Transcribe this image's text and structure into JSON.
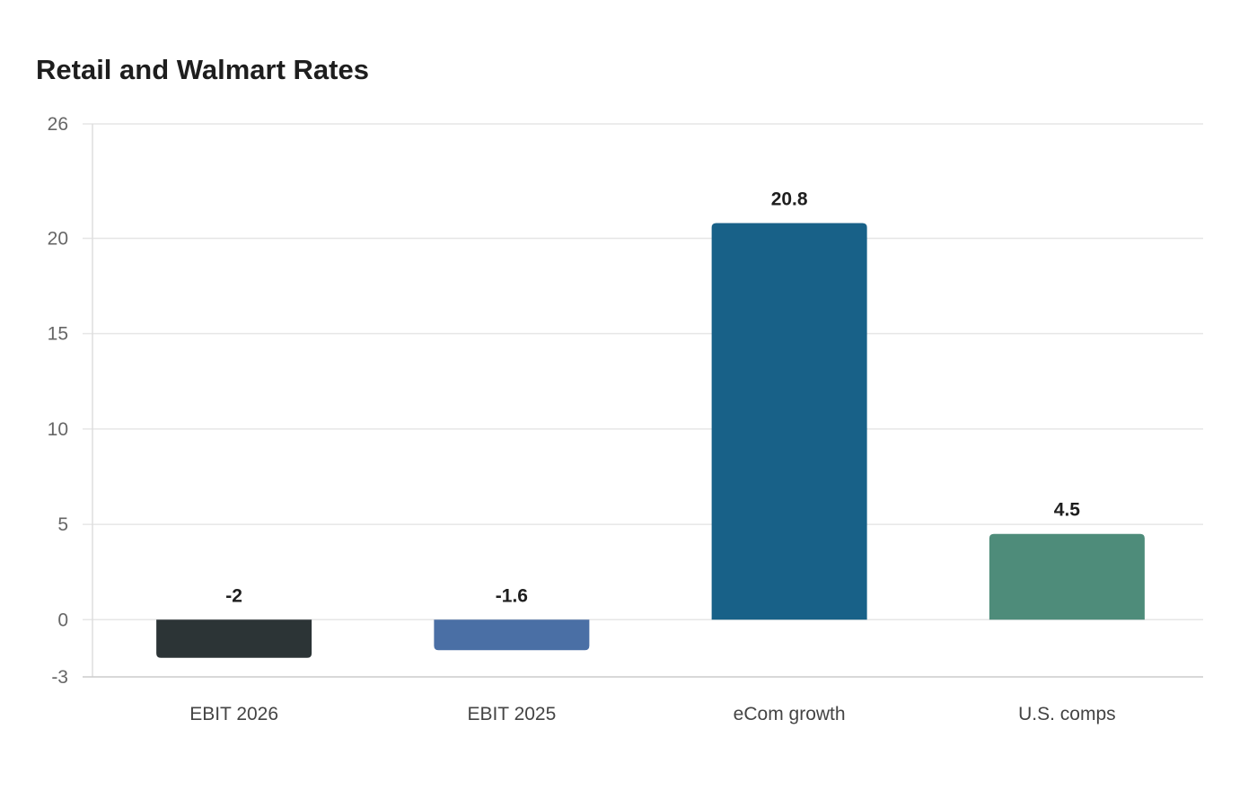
{
  "chart_data": {
    "type": "bar",
    "title": "Retail and Walmart Rates",
    "xlabel": "",
    "ylabel": "",
    "categories": [
      "EBIT 2026",
      "EBIT 2025",
      "eCom growth",
      "U.S. comps"
    ],
    "values": [
      -2,
      -1.6,
      20.8,
      4.5
    ],
    "value_labels": [
      "-2",
      "-1.6",
      "20.8",
      "4.5"
    ],
    "colors": [
      "#2c3436",
      "#4a6fa5",
      "#186188",
      "#4e8c7a"
    ],
    "ylim": [
      -3,
      26
    ],
    "yticks": [
      -3,
      0,
      5,
      10,
      15,
      20,
      26
    ],
    "ytick_labels": [
      "-3",
      "0",
      "5",
      "10",
      "15",
      "20",
      "26"
    ],
    "grid": true,
    "legend": "none"
  }
}
